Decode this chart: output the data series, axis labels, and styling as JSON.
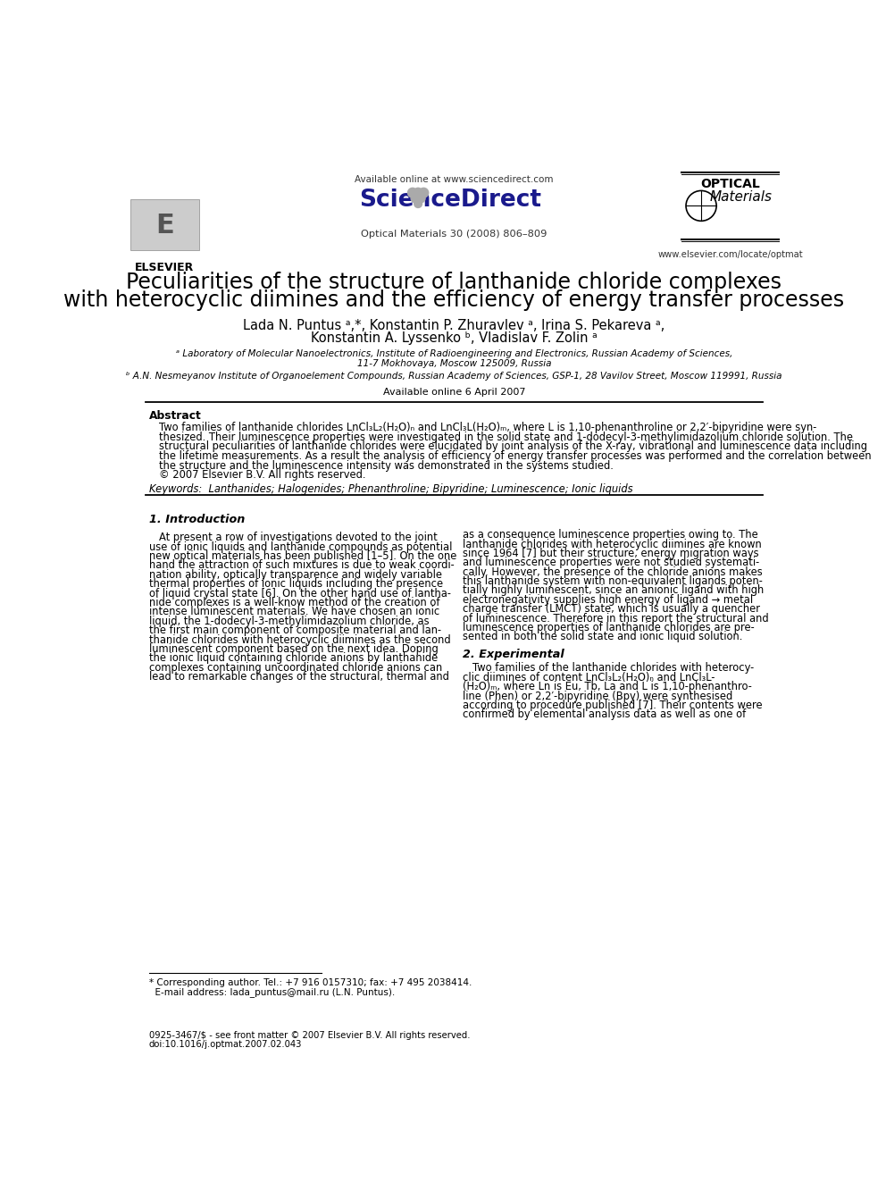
{
  "bg_color": "#ffffff",
  "available_online_header": "Available online at www.sciencedirect.com",
  "sciencedirect": "ScienceDirect",
  "journal": "Optical Materials 30 (2008) 806–809",
  "elsevier_text": "ELSEVIER",
  "optical_materials_line1": "OPTICAL",
  "optical_materials_line2": "Materials",
  "website": "www.elsevier.com/locate/optmat",
  "title_line1": "Peculiarities of the structure of lanthanide chloride complexes",
  "title_line2": "with heterocyclic diimines and the efficiency of energy transfer processes",
  "authors_line1": "Lada N. Puntus ᵃ,*, Konstantin P. Zhuravlev ᵃ, Irina S. Pekareva ᵃ,",
  "authors_line2": "Konstantin A. Lyssenko ᵇ, Vladislav F. Zolin ᵃ",
  "affil_a_line1": "ᵃ Laboratory of Molecular Nanoelectronics, Institute of Radioengineering and Electronics, Russian Academy of Sciences,",
  "affil_a_line2": "11-7 Mokhovaya, Moscow 125009, Russia",
  "affil_b": "ᵇ A.N. Nesmeyanov Institute of Organoelement Compounds, Russian Academy of Sciences, GSP-1, 28 Vavilov Street, Moscow 119991, Russia",
  "available_online_date": "Available online 6 April 2007",
  "abstract_label": "Abstract",
  "abstract_lines": [
    "Two families of lanthanide chlorides LnCl₃L₂(H₂O)ₙ and LnCl₃L(H₂O)ₘ, where L is 1,10-phenanthroline or 2,2′-bipyridine were syn-",
    "thesized. Their luminescence properties were investigated in the solid state and 1-dodecyl-3-methylimidazolium chloride solution. The",
    "structural peculiarities of lanthanide chlorides were elucidated by joint analysis of the X-ray, vibrational and luminescence data including",
    "the lifetime measurements. As a result the analysis of efficiency of energy transfer processes was performed and the correlation between",
    "the structure and the luminescence intensity was demonstrated in the systems studied.",
    "© 2007 Elsevier B.V. All rights reserved."
  ],
  "keywords": "Keywords:  Lanthanides; Halogenides; Phenanthroline; Bipyridine; Luminescence; Ionic liquids",
  "section1_title": "1. Introduction",
  "section1_left_lines": [
    "At present a row of investigations devoted to the joint",
    "use of ionic liquids and lanthanide compounds as potential",
    "new optical materials has been published [1–5]. On the one",
    "hand the attraction of such mixtures is due to weak coordi-",
    "nation ability, optically transparence and widely variable",
    "thermal properties of ionic liquids including the presence",
    "of liquid crystal state [6]. On the other hand use of lantha-",
    "nide complexes is a well-know method of the creation of",
    "intense luminescent materials. We have chosen an ionic",
    "liquid, the 1-dodecyl-3-methylimidazolium chloride, as",
    "the first main component of composite material and lan-",
    "thanide chlorides with heterocyclic diimines as the second",
    "luminescent component based on the next idea. Doping",
    "the ionic liquid containing chloride anions by lanthanide",
    "complexes containing uncoordinated chloride anions can",
    "lead to remarkable changes of the structural, thermal and"
  ],
  "section1_right_lines": [
    "as a consequence luminescence properties owing to. The",
    "lanthanide chlorides with heterocyclic diimines are known",
    "since 1964 [7] but their structure, energy migration ways",
    "and luminescence properties were not studied systemati-",
    "cally. However, the presence of the chloride anions makes",
    "this lanthanide system with non-equivalent ligands poten-",
    "tially highly luminescent, since an anionic ligand with high",
    "electronegativity supplies high energy of ligand → metal",
    "charge transfer (LMCT) state, which is usually a quencher",
    "of luminescence. Therefore in this report the structural and",
    "luminescence properties of lanthanide chlorides are pre-",
    "sented in both the solid state and ionic liquid solution."
  ],
  "section2_title": "2. Experimental",
  "section2_right_lines": [
    "Two families of the lanthanide chlorides with heterocy-",
    "clic diimines of content LnCl₃L₂(H₂O)ₙ and LnCl₃L-",
    "(H₂O)ₘ, where Ln is Eu, Tb, La and L is 1,10-phenanthro-",
    "line (Phen) or 2,2′-bipyridine (Bpy) were synthesised",
    "according to procedure published [7]. Their contents were",
    "confirmed by elemental analysis data as well as one of"
  ],
  "footnote_line1": "* Corresponding author. Tel.: +7 916 0157310; fax: +7 495 2038414.",
  "footnote_line2": "  E-mail address: lada_puntus@mail.ru (L.N. Puntus).",
  "footer_line1": "0925-3467/$ - see front matter © 2007 Elsevier B.V. All rights reserved.",
  "footer_line2": "doi:10.1016/j.optmat.2007.02.043"
}
